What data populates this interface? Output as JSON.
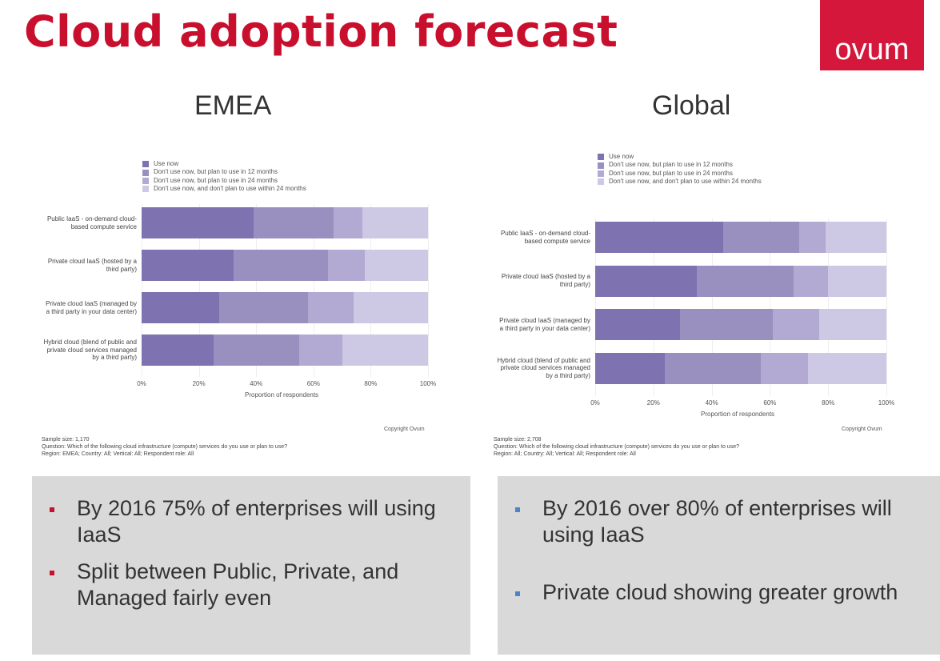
{
  "title": "Cloud adoption forecast",
  "logo": "ovum",
  "colors": {
    "title": "#c8102e",
    "logo_bg": "#d4173a",
    "series": [
      "#7e72b0",
      "#9a90c0",
      "#b2aad2",
      "#cdc8e3"
    ],
    "bullet_left": "#c8102e",
    "bullet_right": "#4a86c5"
  },
  "legend": [
    "Use now",
    "Don't use now, but plan to use in 12 months",
    "Don't use now, but plan to use in 24 months",
    "Don't use now, and don't plan to use within 24 months"
  ],
  "chart_data": [
    {
      "type": "bar",
      "stacked": true,
      "orientation": "horizontal",
      "title": "EMEA",
      "categories": [
        "Public IaaS - on-demand cloud-based compute service",
        "Private cloud IaaS (hosted by a third party)",
        "Private cloud IaaS (managed by a third party in your data center)",
        "Hybrid cloud (blend of public and private cloud services managed by a third party)"
      ],
      "series": [
        {
          "name": "Use now",
          "values": [
            39,
            32,
            27,
            25
          ]
        },
        {
          "name": "Don't use now, but plan to use in 12 months",
          "values": [
            28,
            33,
            31,
            30
          ]
        },
        {
          "name": "Don't use now, but plan to use in 24 months",
          "values": [
            10,
            13,
            16,
            15
          ]
        },
        {
          "name": "Don't use now, and don't plan to use within 24 months",
          "values": [
            23,
            22,
            26,
            30
          ]
        }
      ],
      "xlabel": "Proportion of respondents",
      "xticks": [
        "0%",
        "20%",
        "40%",
        "60%",
        "80%",
        "100%"
      ],
      "xlim": [
        0,
        100
      ],
      "legend_position": "top",
      "copyright": "Copyright Ovum",
      "notes": [
        "Sample size: 1,170",
        "Question: Which of the following cloud infrastructure (compute) services do you use or plan to use?",
        "Region: EMEA; Country: All; Vertical: All; Respondent role: All"
      ]
    },
    {
      "type": "bar",
      "stacked": true,
      "orientation": "horizontal",
      "title": "Global",
      "categories": [
        "Public IaaS - on-demand cloud-based compute service",
        "Private cloud IaaS (hosted by a third party)",
        "Private cloud IaaS (managed by a third party in your data center)",
        "Hybrid cloud (blend of public and private cloud services managed by a third party)"
      ],
      "series": [
        {
          "name": "Use now",
          "values": [
            44,
            35,
            29,
            24
          ]
        },
        {
          "name": "Don't use now, but plan to use in 12 months",
          "values": [
            26,
            33,
            32,
            33
          ]
        },
        {
          "name": "Don't use now, but plan to use in 24 months",
          "values": [
            9,
            12,
            16,
            16
          ]
        },
        {
          "name": "Don't use now, and don't plan to use within 24 months",
          "values": [
            21,
            20,
            23,
            27
          ]
        }
      ],
      "xlabel": "Proportion of respondents",
      "xticks": [
        "0%",
        "20%",
        "40%",
        "60%",
        "80%",
        "100%"
      ],
      "xlim": [
        0,
        100
      ],
      "legend_position": "top",
      "copyright": "Copyright Ovum",
      "notes": [
        "Sample size: 2,708",
        "Question: Which of the following cloud infrastructure (compute) services do you use or plan to use?",
        "Region: All; Country: All; Vertical: All; Respondent role: All"
      ]
    }
  ],
  "bullets_left": [
    "By 2016 75% of enterprises will using IaaS",
    "Split between Public, Private, and Managed fairly even"
  ],
  "bullets_right": [
    "By 2016 over 80% of enterprises will using IaaS",
    "Private cloud showing greater growth"
  ]
}
